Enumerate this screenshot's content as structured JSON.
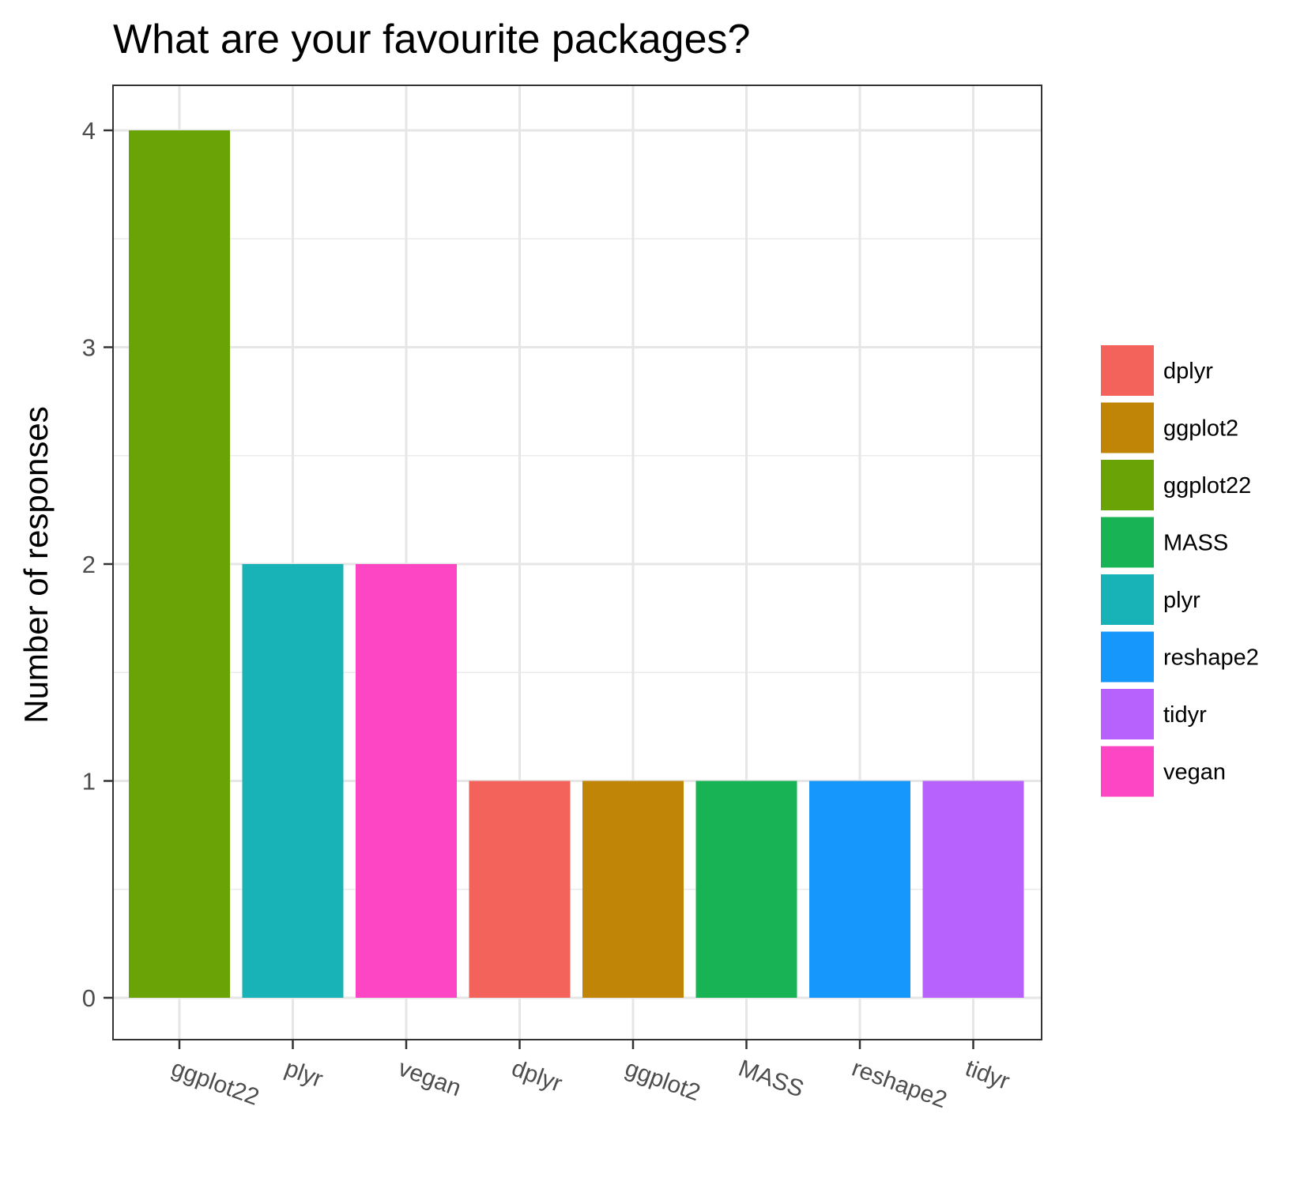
{
  "chart_data": {
    "type": "bar",
    "title": "What are your favourite packages?",
    "xlabel": "",
    "ylabel": "Number of responses",
    "categories": [
      "ggplot22",
      "plyr",
      "vegan",
      "dplyr",
      "ggplot2",
      "MASS",
      "reshape2",
      "tidyr"
    ],
    "values": [
      4,
      2,
      2,
      1,
      1,
      1,
      1,
      1
    ],
    "bar_colors": [
      "#6aa305",
      "#18b3b7",
      "#fc46c3",
      "#f3625b",
      "#c08406",
      "#18b355",
      "#1597fc",
      "#b762fc"
    ],
    "ylim": [
      0,
      4
    ],
    "yticks": [
      0,
      1,
      2,
      3,
      4
    ],
    "grid": true,
    "legend": {
      "position": "right",
      "entries": [
        {
          "label": "dplyr",
          "color": "#f3625b"
        },
        {
          "label": "ggplot2",
          "color": "#c08406"
        },
        {
          "label": "ggplot22",
          "color": "#6aa305"
        },
        {
          "label": "MASS",
          "color": "#18b355"
        },
        {
          "label": "plyr",
          "color": "#18b3b7"
        },
        {
          "label": "reshape2",
          "color": "#1597fc"
        },
        {
          "label": "tidyr",
          "color": "#b762fc"
        },
        {
          "label": "vegan",
          "color": "#fc46c3"
        }
      ]
    }
  }
}
